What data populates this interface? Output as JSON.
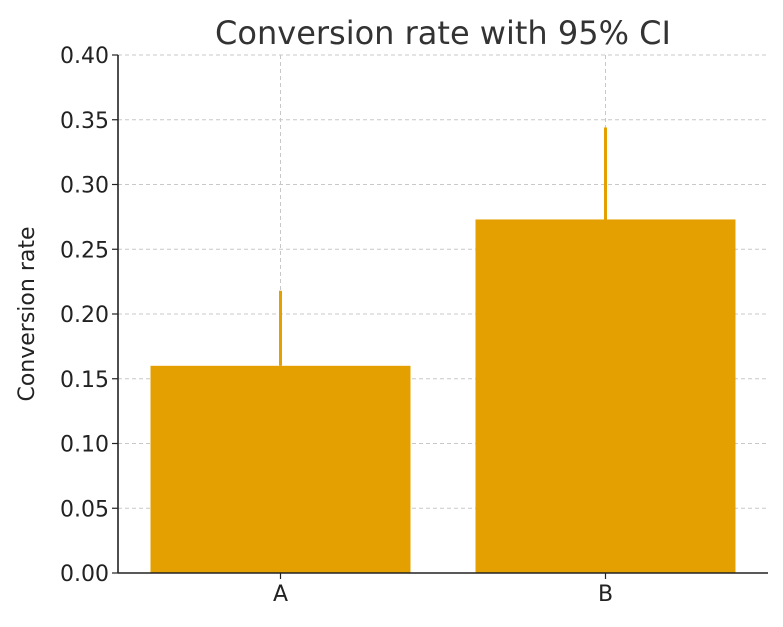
{
  "chart_data": {
    "type": "bar",
    "title": "Conversion rate with 95% CI",
    "xlabel": "",
    "ylabel": "Conversion rate",
    "categories": [
      "A",
      "B"
    ],
    "values": [
      0.16,
      0.273
    ],
    "error_upper": [
      0.218,
      0.344
    ],
    "ylim": [
      0,
      0.4
    ],
    "yticks": [
      "0.00",
      "0.05",
      "0.10",
      "0.15",
      "0.20",
      "0.25",
      "0.30",
      "0.35",
      "0.40"
    ],
    "grid": true,
    "legend": "none",
    "bar_color": "#E3A000",
    "error_color": "#E3A000"
  }
}
